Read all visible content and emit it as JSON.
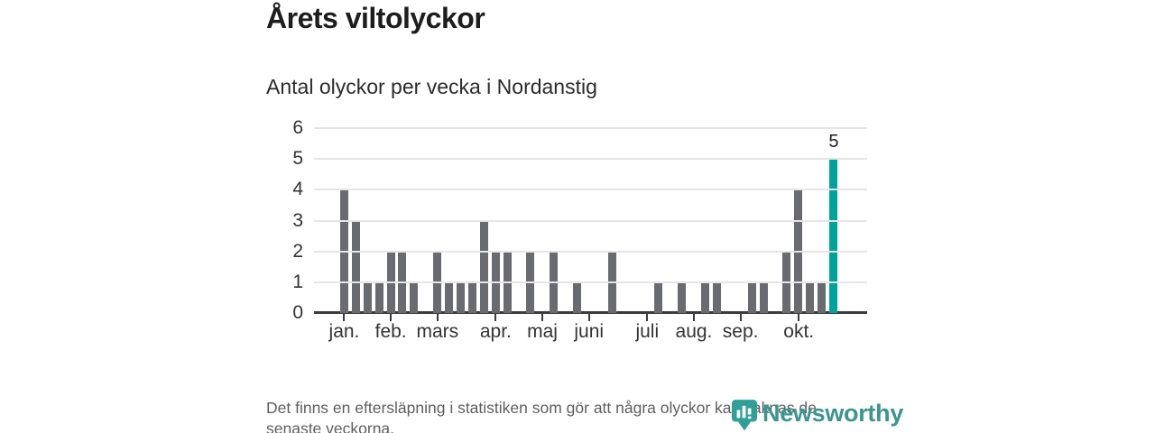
{
  "chart_data": {
    "type": "bar",
    "title": "Årets viltolyckor",
    "subtitle": "Antal olyckor per vecka i Nordanstig",
    "xlabel": "",
    "ylabel": "",
    "ylim": [
      0,
      6
    ],
    "yticks": [
      0,
      1,
      2,
      3,
      4,
      5,
      6
    ],
    "grid": true,
    "legend": "none",
    "categories": [
      1,
      2,
      3,
      4,
      5,
      6,
      7,
      8,
      9,
      10,
      11,
      12,
      13,
      14,
      15,
      16,
      17,
      18,
      19,
      20,
      21,
      22,
      23,
      24,
      25,
      26,
      27,
      28,
      29,
      30,
      31,
      32,
      33,
      34,
      35,
      36,
      37,
      38,
      39,
      40,
      41,
      42,
      43
    ],
    "values": [
      4,
      3,
      1,
      1,
      2,
      2,
      1,
      0,
      2,
      1,
      1,
      1,
      3,
      2,
      2,
      0,
      2,
      0,
      2,
      0,
      1,
      0,
      0,
      2,
      0,
      0,
      0,
      1,
      0,
      1,
      0,
      1,
      1,
      0,
      0,
      1,
      1,
      0,
      2,
      4,
      1,
      1,
      5
    ],
    "month_ticks": [
      {
        "label": "jan.",
        "week": 1
      },
      {
        "label": "feb.",
        "week": 5
      },
      {
        "label": "mars",
        "week": 9
      },
      {
        "label": "apr.",
        "week": 14
      },
      {
        "label": "maj",
        "week": 18
      },
      {
        "label": "juni",
        "week": 22
      },
      {
        "label": "juli",
        "week": 27
      },
      {
        "label": "aug.",
        "week": 31
      },
      {
        "label": "sep.",
        "week": 35
      },
      {
        "label": "okt.",
        "week": 40
      }
    ],
    "bar_color": "#6a6a71",
    "highlight": {
      "index": 42,
      "value_label": "5",
      "color": "#00a39c"
    }
  },
  "footnote": {
    "lines": [
      "Det finns en eftersläpning i statistiken som gör att några olyckor kan saknas de",
      "senaste veckorna."
    ]
  },
  "branding": {
    "logo_text": "Newsworthy",
    "logo_color": "#3a968f",
    "logo_icon": "newsworthy-barchart-pin-icon"
  }
}
